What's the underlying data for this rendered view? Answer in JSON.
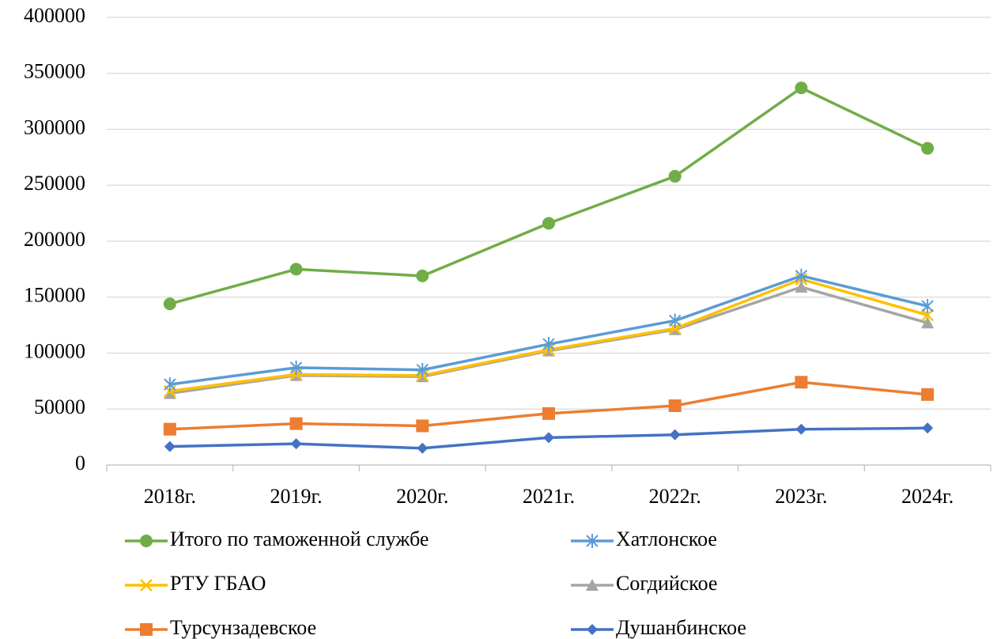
{
  "chart_data": {
    "type": "line",
    "categories": [
      "2018г.",
      "2019г.",
      "2020г.",
      "2021г.",
      "2022г.",
      "2023г.",
      "2024г."
    ],
    "series": [
      {
        "name": "Итого по таможенной службе",
        "color": "#70ad47",
        "marker": "circle",
        "values": [
          144000,
          175000,
          169000,
          216000,
          258000,
          337000,
          283000
        ]
      },
      {
        "name": "Хатлонское",
        "color": "#5b9bd5",
        "marker": "star",
        "values": [
          72000,
          87000,
          85000,
          108000,
          129000,
          169000,
          142000
        ]
      },
      {
        "name": "РТУ ГБАО",
        "color": "#ffc000",
        "marker": "x",
        "values": [
          66000,
          81000,
          80000,
          103000,
          122000,
          166000,
          134000
        ]
      },
      {
        "name": "Согдийское",
        "color": "#a5a5a5",
        "marker": "triangle",
        "values": [
          64000,
          80000,
          79000,
          102000,
          121000,
          159000,
          127000
        ]
      },
      {
        "name": "Турсунзадевское",
        "color": "#ed7d31",
        "marker": "square",
        "values": [
          32000,
          37000,
          35000,
          46000,
          53000,
          74000,
          63000
        ]
      },
      {
        "name": "Душанбинское",
        "color": "#4472c4",
        "marker": "diamond",
        "values": [
          16500,
          19000,
          15000,
          24500,
          27000,
          32000,
          33000
        ]
      }
    ],
    "ylim": [
      0,
      400000
    ],
    "yticks": [
      0,
      50000,
      100000,
      150000,
      200000,
      250000,
      300000,
      350000,
      400000
    ],
    "grid": true,
    "legend": "bottom"
  }
}
